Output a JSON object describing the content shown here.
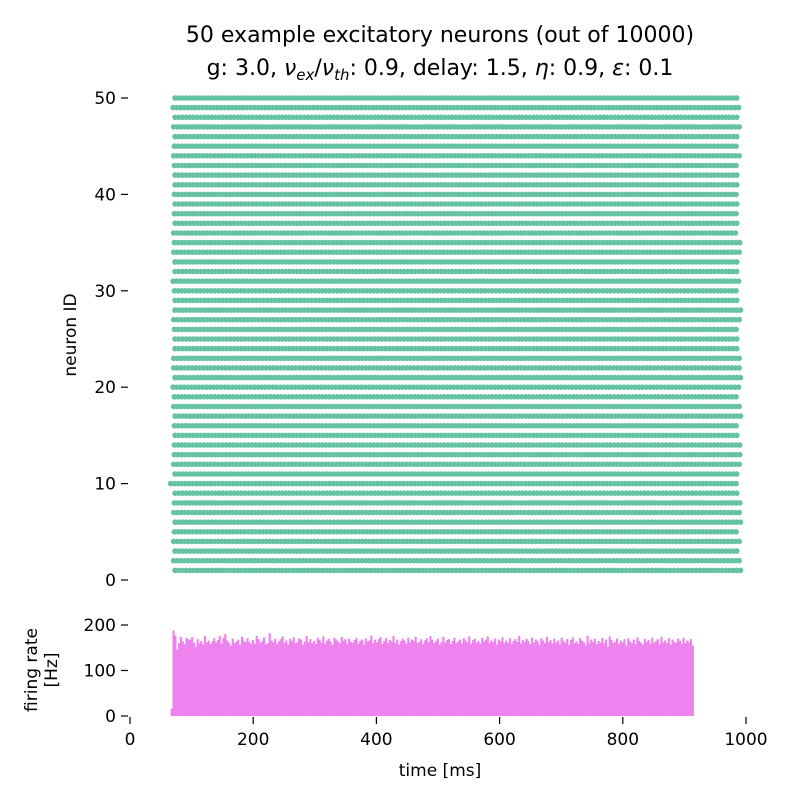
{
  "figure": {
    "title_line1": "50 example excitatory neurons (out of 10000)",
    "title_line2": {
      "g": "g: 3.0, ",
      "nu": "ν",
      "nu_ex_sub": "ex",
      "slash": "/",
      "nu2": "ν",
      "nu_th_sub": "th",
      "ratio": ": 0.9, delay: 1.5, ",
      "eta": "η",
      "eta_val": ": 0.9, ",
      "eps": "ε",
      "eps_val": ": 0.1"
    }
  },
  "chart_data": [
    {
      "type": "scatter",
      "ylabel": "neuron ID",
      "xlim": [
        0,
        1000
      ],
      "ylim": [
        0,
        50
      ],
      "yticks": [
        0,
        10,
        20,
        30,
        40,
        50
      ],
      "neuron_ids": [
        1,
        2,
        3,
        4,
        5,
        6,
        7,
        8,
        9,
        10,
        11,
        12,
        13,
        14,
        15,
        16,
        17,
        18,
        19,
        20,
        21,
        22,
        23,
        24,
        25,
        26,
        27,
        28,
        29,
        30,
        31,
        32,
        33,
        34,
        35,
        36,
        37,
        38,
        39,
        40,
        41,
        42,
        43,
        44,
        45,
        46,
        47,
        48,
        49,
        50
      ],
      "first_spike_ms": [
        73,
        71,
        73,
        71,
        72,
        73,
        71,
        72,
        73,
        66,
        73,
        71,
        72,
        72,
        73,
        72,
        73,
        71,
        72,
        70,
        73,
        71,
        71,
        73,
        73,
        72,
        71,
        73,
        73,
        72,
        70,
        73,
        73,
        71,
        72,
        71,
        73,
        72,
        73,
        72,
        73,
        73,
        72,
        71,
        72,
        73,
        71,
        73,
        70,
        73
      ],
      "last_spike_ms": [
        993,
        989,
        988,
        990,
        988,
        992,
        990,
        991,
        987,
        988,
        989,
        993,
        990,
        990,
        988,
        989,
        992,
        990,
        989,
        988,
        991,
        990,
        989,
        988,
        990,
        988,
        989,
        993,
        989,
        988,
        988,
        990,
        988,
        989,
        990,
        988,
        988,
        989,
        987,
        989,
        988,
        988,
        988,
        992,
        988,
        988,
        989,
        988,
        988,
        988
      ],
      "spike_interval_ms": 6,
      "color": "#66c2a5",
      "grid": false
    },
    {
      "type": "bar",
      "ylabel": "firing rate\n[Hz]",
      "ylabel_line1": "firing rate",
      "ylabel_line2": "[Hz]",
      "xlabel": "time [ms]",
      "xlim": [
        0,
        1000
      ],
      "ylim": [
        0,
        200
      ],
      "yticks": [
        0,
        100,
        200
      ],
      "xticks": [
        0,
        200,
        400,
        600,
        800,
        1000
      ],
      "bin_ms": 3,
      "x_start": 66,
      "color": "#ee82ee",
      "values": [
        16,
        188,
        177,
        145,
        160,
        174,
        164,
        158,
        172,
        169,
        167,
        173,
        161,
        152,
        169,
        160,
        165,
        157,
        176,
        162,
        166,
        158,
        164,
        171,
        162,
        167,
        176,
        159,
        172,
        180,
        166,
        161,
        155,
        170,
        160,
        164,
        168,
        157,
        174,
        165,
        162,
        171,
        163,
        158,
        167,
        159,
        176,
        169,
        161,
        165,
        173,
        158,
        160,
        182,
        166,
        162,
        170,
        158,
        164,
        169,
        175,
        161,
        166,
        157,
        170,
        165,
        173,
        160,
        162,
        171,
        168,
        157,
        164,
        176,
        162,
        169,
        160,
        165,
        158,
        172,
        167,
        161,
        175,
        159,
        166,
        170,
        163,
        156,
        172,
        168,
        164,
        160,
        174,
        166,
        169,
        158,
        170,
        163,
        161,
        167,
        172,
        159,
        165,
        168,
        157,
        171,
        164,
        166,
        177,
        160,
        168,
        162,
        169,
        173,
        158,
        165,
        171,
        160,
        167,
        163,
        176,
        161,
        168,
        157,
        164,
        170,
        166,
        159,
        172,
        162,
        168,
        165,
        174,
        160,
        163,
        169,
        158,
        166,
        171,
        162,
        176,
        168,
        160,
        165,
        170,
        157,
        163,
        174,
        161,
        167,
        169,
        158,
        165,
        172,
        160,
        164,
        168,
        159,
        171,
        166,
        162,
        175,
        158,
        167,
        170,
        161,
        165,
        159,
        172,
        164,
        168,
        175,
        160,
        166,
        162,
        170,
        157,
        168,
        164,
        173,
        160,
        166,
        161,
        171,
        158,
        165,
        169,
        163,
        176,
        159,
        167,
        162,
        170,
        165,
        158,
        172,
        161,
        168,
        164,
        157,
        171,
        166,
        160,
        174,
        163,
        167,
        159,
        170,
        162,
        166,
        158,
        172,
        165,
        161,
        169,
        156,
        167,
        173,
        160,
        164,
        158,
        171,
        166,
        162,
        155,
        176,
        160,
        168,
        163,
        170,
        158,
        165,
        161,
        172,
        160,
        168,
        152,
        175,
        167,
        160,
        163,
        170,
        158,
        166,
        162,
        169,
        155,
        171,
        164,
        160,
        168,
        158,
        173,
        165,
        161,
        157,
        170,
        163,
        167,
        159,
        172,
        161,
        165,
        169,
        158,
        174,
        162,
        166,
        160,
        171,
        157,
        168,
        163,
        161,
        170,
        165,
        158,
        172,
        160,
        166,
        162,
        169,
        155
      ]
    }
  ]
}
